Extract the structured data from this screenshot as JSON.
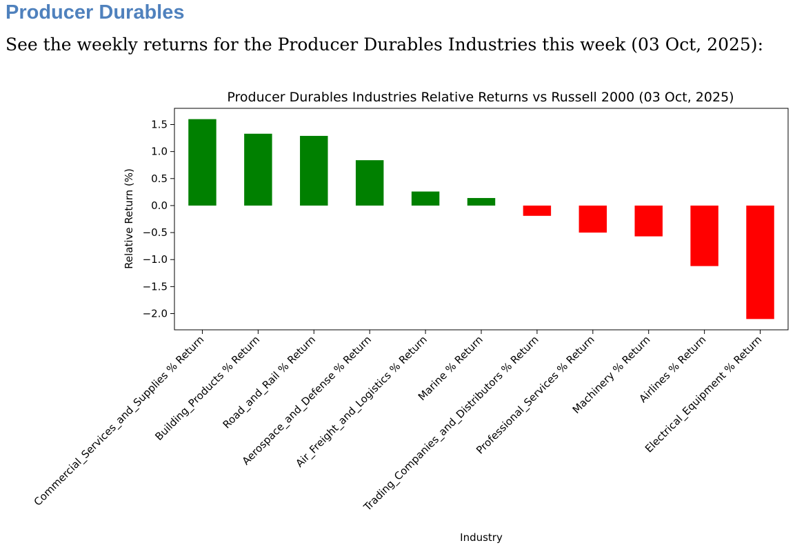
{
  "heading": "Producer Durables",
  "intro": "See the weekly returns for the Producer Durables Industries this week (03 Oct, 2025):",
  "chart_data": {
    "type": "bar",
    "title": "Producer Durables Industries Relative Returns vs Russell 2000 (03 Oct, 2025)",
    "xlabel": "Industry",
    "ylabel": "Relative Return (%)",
    "ylim": [
      -2.3,
      1.8
    ],
    "yticks": [
      1.5,
      1.0,
      0.5,
      0.0,
      -0.5,
      -1.0,
      -1.5,
      -2.0
    ],
    "ytick_labels": [
      "1.5",
      "1.0",
      "0.5",
      "0.0",
      "−0.5",
      "−1.0",
      "−1.5",
      "−2.0"
    ],
    "grid": false,
    "positive_color": "#008000",
    "negative_color": "#ff0000",
    "categories": [
      "Commercial_Services_and_Supplies % Return",
      "Building_Products % Return",
      "Road_and_Rail % Return",
      "Aerospace_and_Defense % Return",
      "Air_Freight_and_Logistics % Return",
      "Marine % Return",
      "Trading_Companies_and_Distributors % Return",
      "Professional_Services % Return",
      "Machinery % Return",
      "Airlines % Return",
      "Electrical_Equipment % Return"
    ],
    "values": [
      1.6,
      1.33,
      1.29,
      0.84,
      0.26,
      0.14,
      -0.19,
      -0.5,
      -0.57,
      -1.12,
      -2.1
    ]
  }
}
